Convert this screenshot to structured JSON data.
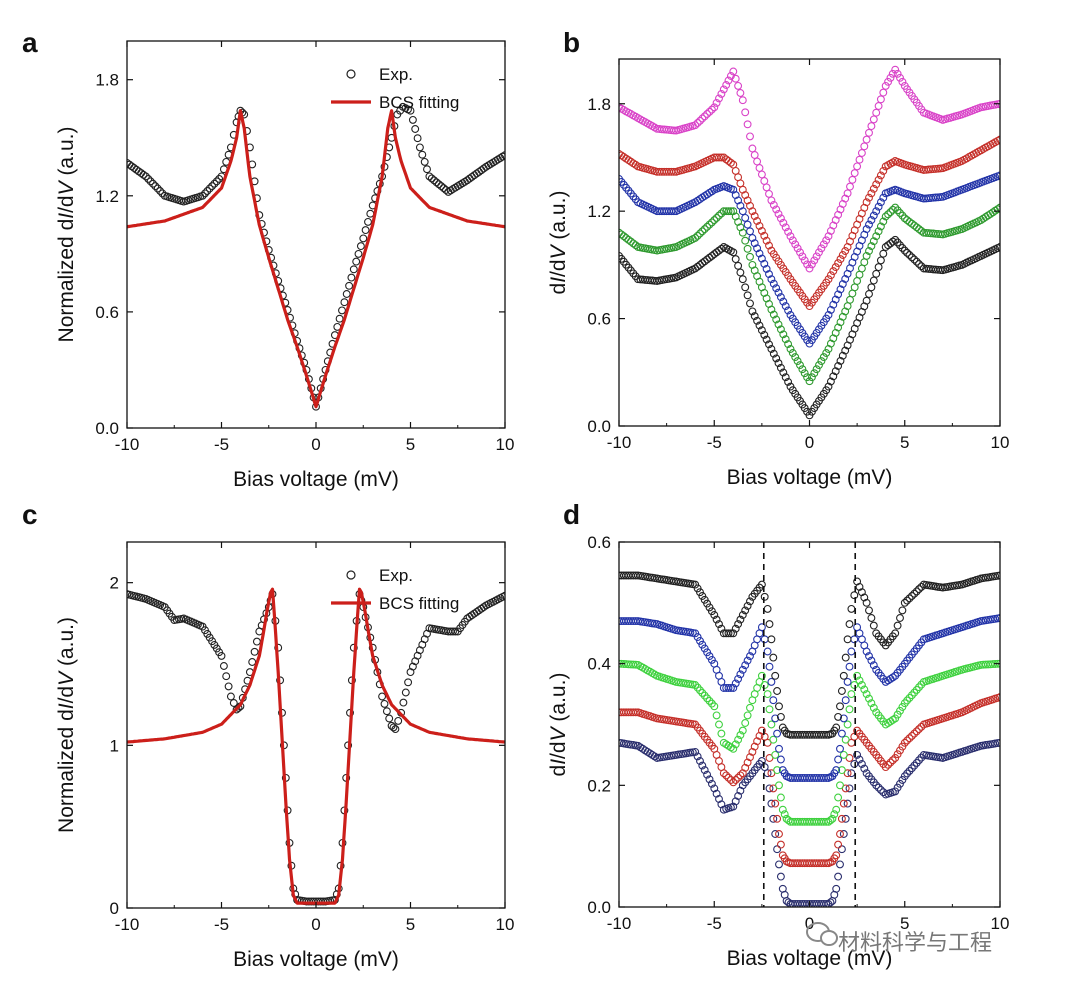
{
  "chart_data": [
    {
      "panel": "a",
      "type": "scatter",
      "xlabel": "Bias voltage (mV)",
      "ylabel_parts": [
        "Normalized d",
        "I",
        "/d",
        "V",
        " (a.u.)"
      ],
      "xlim": [
        -10,
        10
      ],
      "ylim": [
        0,
        2.0
      ],
      "xticks": [
        -10,
        -5,
        0,
        5,
        10
      ],
      "yticks": [
        0.0,
        0.6,
        1.2,
        1.8
      ],
      "ytick_labels": [
        "0.0",
        "0.6",
        "1.2",
        "1.8"
      ],
      "legend": {
        "position": "top-right",
        "entries": [
          "Exp.",
          "BCS fitting"
        ]
      },
      "series": [
        {
          "name": "Exp.",
          "kind": "markers",
          "color": "#222222",
          "x": [
            -10,
            -9,
            -8,
            -7,
            -6,
            -5,
            -4.5,
            -4.2,
            -4,
            -3.8,
            -3.5,
            -3,
            -2.5,
            -2,
            -1.5,
            -1,
            -0.5,
            0,
            0.5,
            1,
            1.5,
            2,
            2.5,
            3,
            3.5,
            4,
            4.3,
            4.6,
            5,
            5.5,
            6,
            7,
            8,
            9,
            10
          ],
          "y": [
            1.37,
            1.3,
            1.2,
            1.17,
            1.2,
            1.3,
            1.45,
            1.58,
            1.64,
            1.62,
            1.45,
            1.1,
            0.92,
            0.76,
            0.61,
            0.45,
            0.3,
            0.11,
            0.3,
            0.48,
            0.65,
            0.82,
            0.98,
            1.15,
            1.3,
            1.5,
            1.62,
            1.66,
            1.64,
            1.45,
            1.3,
            1.22,
            1.28,
            1.35,
            1.41
          ]
        },
        {
          "name": "BCS fitting",
          "kind": "line",
          "color": "#cc1f1a",
          "x": [
            -10,
            -8,
            -6,
            -5,
            -4.5,
            -4.2,
            -4,
            -3.8,
            -3.5,
            -3,
            -2.5,
            -2,
            -1.5,
            -1,
            -0.5,
            0,
            0.5,
            1,
            1.5,
            2,
            2.5,
            3,
            3.5,
            3.8,
            4,
            4.2,
            4.5,
            5,
            6,
            8,
            10
          ],
          "y": [
            1.04,
            1.07,
            1.14,
            1.24,
            1.38,
            1.5,
            1.64,
            1.55,
            1.3,
            1.05,
            0.88,
            0.72,
            0.56,
            0.42,
            0.27,
            0.11,
            0.27,
            0.42,
            0.56,
            0.72,
            0.88,
            1.05,
            1.3,
            1.55,
            1.64,
            1.5,
            1.38,
            1.24,
            1.14,
            1.07,
            1.04
          ]
        }
      ]
    },
    {
      "panel": "b",
      "type": "scatter",
      "xlabel": "Bias voltage (mV)",
      "ylabel_parts": [
        "d",
        "I",
        "/d",
        "V",
        " (a.u.)"
      ],
      "xlim": [
        -10,
        10
      ],
      "ylim": [
        0,
        2.05
      ],
      "xticks": [
        -10,
        -5,
        0,
        5,
        10
      ],
      "yticks": [
        0.0,
        0.6,
        1.2,
        1.8
      ],
      "ytick_labels": [
        "0.0",
        "0.6",
        "1.2",
        "1.8"
      ],
      "series": [
        {
          "color": "#222222",
          "x": [
            -10,
            -9,
            -8,
            -7,
            -6,
            -5,
            -4.5,
            -4,
            -3.5,
            -3,
            -2,
            -1,
            0,
            1,
            2,
            3,
            4,
            4.5,
            5,
            6,
            7,
            8,
            9,
            10
          ],
          "y": [
            0.95,
            0.82,
            0.81,
            0.83,
            0.88,
            0.96,
            1.0,
            0.97,
            0.82,
            0.64,
            0.43,
            0.22,
            0.06,
            0.22,
            0.45,
            0.7,
            1.0,
            1.04,
            0.98,
            0.88,
            0.87,
            0.9,
            0.95,
            1.0
          ]
        },
        {
          "color": "#2f9a2f",
          "x": [
            -10,
            -9,
            -8,
            -7,
            -6,
            -5,
            -4.5,
            -4,
            -3.5,
            -3,
            -2,
            -1,
            0,
            1,
            2,
            3,
            4,
            4.5,
            5,
            6,
            7,
            8,
            9,
            10
          ],
          "y": [
            1.08,
            1.0,
            0.98,
            1.0,
            1.05,
            1.15,
            1.2,
            1.2,
            1.08,
            0.9,
            0.65,
            0.43,
            0.25,
            0.43,
            0.67,
            0.95,
            1.17,
            1.22,
            1.16,
            1.08,
            1.07,
            1.1,
            1.15,
            1.22
          ]
        },
        {
          "color": "#2334a8",
          "x": [
            -10,
            -9,
            -8,
            -7,
            -6,
            -5,
            -4.5,
            -4,
            -3.5,
            -3,
            -2,
            -1,
            0,
            1,
            2,
            3,
            4,
            4.5,
            5,
            6,
            7,
            8,
            9,
            10
          ],
          "y": [
            1.38,
            1.25,
            1.2,
            1.2,
            1.25,
            1.32,
            1.34,
            1.32,
            1.2,
            1.05,
            0.82,
            0.62,
            0.46,
            0.62,
            0.85,
            1.1,
            1.3,
            1.32,
            1.3,
            1.27,
            1.28,
            1.32,
            1.36,
            1.4
          ]
        },
        {
          "color": "#c5302a",
          "x": [
            -10,
            -9,
            -8,
            -7,
            -6,
            -5,
            -4.5,
            -4,
            -3.5,
            -3,
            -2,
            -1,
            0,
            1,
            2,
            3,
            4,
            4.5,
            5,
            6,
            7,
            8,
            9,
            10
          ],
          "y": [
            1.52,
            1.45,
            1.42,
            1.42,
            1.45,
            1.5,
            1.5,
            1.46,
            1.32,
            1.2,
            0.98,
            0.82,
            0.67,
            0.82,
            1.0,
            1.25,
            1.45,
            1.48,
            1.46,
            1.43,
            1.44,
            1.48,
            1.54,
            1.6
          ]
        },
        {
          "color": "#d943c8",
          "x": [
            -10,
            -9,
            -8,
            -7,
            -6,
            -5,
            -4.5,
            -4,
            -3.5,
            -3,
            -2,
            -1,
            0,
            1,
            2,
            3,
            4,
            4.5,
            5,
            6,
            7,
            8,
            9,
            10
          ],
          "y": [
            1.78,
            1.72,
            1.66,
            1.65,
            1.68,
            1.78,
            1.88,
            1.98,
            1.82,
            1.55,
            1.26,
            1.06,
            0.88,
            1.06,
            1.3,
            1.6,
            1.9,
            1.99,
            1.9,
            1.75,
            1.71,
            1.74,
            1.78,
            1.8
          ]
        }
      ]
    },
    {
      "panel": "c",
      "type": "scatter",
      "xlabel": "Bias voltage (mV)",
      "ylabel_parts": [
        "Normalized d",
        "I",
        "/d",
        "V",
        " (a.u.)"
      ],
      "xlim": [
        -10,
        10
      ],
      "ylim": [
        0,
        2.25
      ],
      "xticks": [
        -10,
        -5,
        0,
        5,
        10
      ],
      "yticks": [
        0,
        1,
        2
      ],
      "ytick_labels": [
        "0",
        "1",
        "2"
      ],
      "legend": {
        "position": "top-right",
        "entries": [
          "Exp.",
          "BCS fitting"
        ]
      },
      "series": [
        {
          "name": "Exp.",
          "kind": "markers",
          "color": "#222222",
          "x": [
            -10,
            -9,
            -8,
            -7.5,
            -7,
            -6,
            -5,
            -4.5,
            -4.2,
            -4,
            -3.5,
            -3,
            -2.5,
            -2.3,
            -2,
            -1.8,
            -1.6,
            -1.4,
            -1.2,
            -1,
            -0.5,
            0,
            0.5,
            1,
            1.2,
            1.4,
            1.6,
            1.8,
            2,
            2.3,
            2.5,
            3,
            3.5,
            4,
            4.2,
            4.5,
            5,
            6,
            7,
            7.5,
            8,
            9,
            10
          ],
          "y": [
            1.93,
            1.9,
            1.85,
            1.77,
            1.78,
            1.73,
            1.55,
            1.3,
            1.22,
            1.24,
            1.45,
            1.7,
            1.85,
            1.93,
            1.6,
            1.2,
            0.8,
            0.4,
            0.12,
            0.05,
            0.04,
            0.04,
            0.04,
            0.05,
            0.12,
            0.4,
            0.8,
            1.2,
            1.6,
            1.93,
            1.85,
            1.6,
            1.3,
            1.12,
            1.1,
            1.2,
            1.45,
            1.72,
            1.7,
            1.7,
            1.78,
            1.86,
            1.92
          ]
        },
        {
          "name": "BCS fitting",
          "kind": "line",
          "color": "#cc1f1a",
          "x": [
            -10,
            -8,
            -6,
            -5,
            -4,
            -3.5,
            -3,
            -2.8,
            -2.6,
            -2.4,
            -2.3,
            -2.2,
            -2.0,
            -1.8,
            -1.6,
            -1.4,
            -1.2,
            -1.0,
            0,
            1.0,
            1.2,
            1.4,
            1.6,
            1.8,
            2.0,
            2.2,
            2.3,
            2.4,
            2.6,
            2.8,
            3,
            3.5,
            4,
            5,
            6,
            8,
            10
          ],
          "y": [
            1.02,
            1.04,
            1.08,
            1.13,
            1.25,
            1.37,
            1.55,
            1.68,
            1.82,
            1.94,
            1.96,
            1.8,
            1.45,
            1.05,
            0.65,
            0.3,
            0.08,
            0.03,
            0.03,
            0.03,
            0.08,
            0.3,
            0.65,
            1.05,
            1.45,
            1.8,
            1.96,
            1.94,
            1.82,
            1.68,
            1.55,
            1.37,
            1.25,
            1.13,
            1.08,
            1.04,
            1.02
          ]
        }
      ]
    },
    {
      "panel": "d",
      "type": "scatter",
      "xlabel": "Bias voltage (mV)",
      "ylabel_parts": [
        "d",
        "I",
        "/d",
        "V",
        " (a.u.)"
      ],
      "xlim": [
        -10,
        10
      ],
      "ylim": [
        0,
        0.6
      ],
      "xticks": [
        -10,
        -5,
        0,
        5,
        10
      ],
      "yticks": [
        0.0,
        0.2,
        0.4,
        0.6
      ],
      "ytick_labels": [
        "0.0",
        "0.2",
        "0.4",
        "0.6"
      ],
      "vlines": [
        -2.4,
        2.4
      ],
      "series": [
        {
          "color": "#2b2f6e",
          "x": [
            -10,
            -9,
            -8,
            -7,
            -6,
            -5,
            -4.5,
            -4,
            -3.5,
            -3,
            -2.5,
            -2.2,
            -2,
            -1.8,
            -1.6,
            -1.4,
            -1.2,
            -1,
            0,
            1,
            1.2,
            1.4,
            1.6,
            1.8,
            2,
            2.2,
            2.5,
            3,
            3.5,
            4,
            4.5,
            5,
            6,
            7,
            8,
            9,
            10
          ],
          "y": [
            0.27,
            0.265,
            0.245,
            0.25,
            0.255,
            0.195,
            0.16,
            0.165,
            0.2,
            0.22,
            0.24,
            0.22,
            0.17,
            0.12,
            0.07,
            0.03,
            0.01,
            0.005,
            0.005,
            0.005,
            0.01,
            0.03,
            0.07,
            0.12,
            0.17,
            0.22,
            0.25,
            0.22,
            0.2,
            0.185,
            0.19,
            0.215,
            0.25,
            0.245,
            0.255,
            0.265,
            0.27
          ]
        },
        {
          "color": "#c5302a",
          "x": [
            -10,
            -9,
            -8,
            -7,
            -6,
            -5,
            -4.5,
            -4,
            -3.5,
            -3,
            -2.5,
            -2.2,
            -2,
            -1.8,
            -1.6,
            -1.4,
            -1.2,
            -1,
            0,
            1,
            1.2,
            1.4,
            1.6,
            1.8,
            2,
            2.2,
            2.5,
            3,
            3.5,
            4,
            4.5,
            5,
            6,
            7,
            8,
            9,
            10
          ],
          "y": [
            0.32,
            0.32,
            0.31,
            0.305,
            0.3,
            0.26,
            0.22,
            0.205,
            0.22,
            0.255,
            0.29,
            0.27,
            0.22,
            0.17,
            0.12,
            0.085,
            0.075,
            0.072,
            0.072,
            0.072,
            0.075,
            0.085,
            0.12,
            0.17,
            0.22,
            0.27,
            0.29,
            0.27,
            0.25,
            0.23,
            0.245,
            0.27,
            0.3,
            0.31,
            0.32,
            0.335,
            0.345
          ]
        },
        {
          "color": "#3fd13f",
          "x": [
            -10,
            -9,
            -8,
            -7,
            -6,
            -5,
            -4.5,
            -4,
            -3.5,
            -3,
            -2.5,
            -2.2,
            -2,
            -1.8,
            -1.6,
            -1.4,
            -1.2,
            -1,
            0,
            1,
            1.2,
            1.4,
            1.6,
            1.8,
            2,
            2.2,
            2.5,
            3,
            3.5,
            4,
            4.5,
            5,
            6,
            7,
            8,
            9,
            10
          ],
          "y": [
            0.4,
            0.398,
            0.38,
            0.37,
            0.365,
            0.33,
            0.27,
            0.26,
            0.29,
            0.34,
            0.38,
            0.35,
            0.3,
            0.25,
            0.2,
            0.16,
            0.145,
            0.14,
            0.14,
            0.14,
            0.145,
            0.16,
            0.2,
            0.25,
            0.3,
            0.35,
            0.38,
            0.35,
            0.32,
            0.3,
            0.31,
            0.335,
            0.37,
            0.38,
            0.39,
            0.398,
            0.4
          ]
        },
        {
          "color": "#2334a8",
          "x": [
            -10,
            -9,
            -8,
            -7,
            -6,
            -5,
            -4.5,
            -4,
            -3.5,
            -3,
            -2.5,
            -2.2,
            -2,
            -1.8,
            -1.6,
            -1.4,
            -1.2,
            -1,
            0,
            1,
            1.2,
            1.4,
            1.6,
            1.8,
            2,
            2.2,
            2.5,
            3,
            3.5,
            4,
            4.5,
            5,
            6,
            7,
            8,
            9,
            10
          ],
          "y": [
            0.47,
            0.47,
            0.465,
            0.455,
            0.45,
            0.4,
            0.36,
            0.36,
            0.39,
            0.42,
            0.46,
            0.42,
            0.37,
            0.31,
            0.26,
            0.225,
            0.215,
            0.212,
            0.212,
            0.212,
            0.215,
            0.225,
            0.26,
            0.31,
            0.37,
            0.42,
            0.46,
            0.42,
            0.39,
            0.37,
            0.38,
            0.4,
            0.44,
            0.45,
            0.46,
            0.47,
            0.475
          ]
        },
        {
          "color": "#222222",
          "x": [
            -10,
            -9,
            -8,
            -7,
            -6,
            -5,
            -4.5,
            -4,
            -3.5,
            -3,
            -2.5,
            -2.2,
            -2,
            -1.8,
            -1.6,
            -1.4,
            -1.2,
            -1,
            0,
            1,
            1.2,
            1.4,
            1.6,
            1.8,
            2,
            2.2,
            2.5,
            3,
            3.5,
            4,
            4.5,
            5,
            6,
            7,
            8,
            9,
            10
          ],
          "y": [
            0.545,
            0.545,
            0.54,
            0.535,
            0.53,
            0.48,
            0.45,
            0.45,
            0.48,
            0.51,
            0.53,
            0.49,
            0.44,
            0.38,
            0.33,
            0.295,
            0.285,
            0.283,
            0.283,
            0.283,
            0.285,
            0.295,
            0.33,
            0.38,
            0.44,
            0.49,
            0.535,
            0.5,
            0.45,
            0.43,
            0.45,
            0.5,
            0.53,
            0.525,
            0.53,
            0.54,
            0.545
          ]
        }
      ]
    }
  ],
  "panel_labels": [
    "a",
    "b",
    "c",
    "d"
  ],
  "watermark": "材料科学与工程"
}
